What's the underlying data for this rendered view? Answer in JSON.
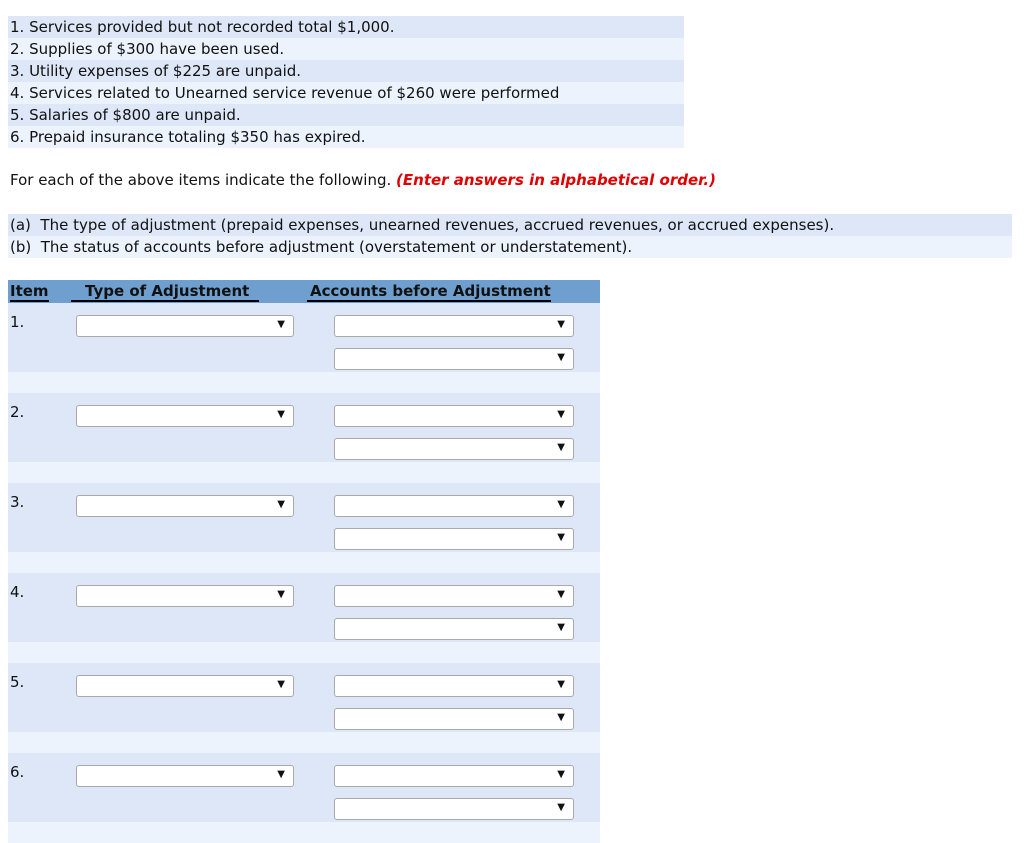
{
  "items": [
    "1. Services provided but not recorded total $1,000.",
    "2. Supplies of $300 have been used.",
    "3. Utility expenses of $225 are unpaid.",
    "4. Services related to Unearned service revenue of $260 were performed",
    "5. Salaries of $800 are unpaid.",
    "6. Prepaid insurance totaling $350 has expired."
  ],
  "instruction": {
    "text": "For each of the above items indicate the following.",
    "emphasis": "(Enter answers in alphabetical order.)"
  },
  "parts": [
    "(a)  The type of adjustment (prepaid expenses, unearned revenues, accrued revenues, or accrued expenses).",
    "(b)  The status of accounts before adjustment (overstatement or understatement)."
  ],
  "table": {
    "headers": {
      "item": "Item",
      "type": "Type of Adjustment",
      "accounts": "Accounts before Adjustment"
    },
    "rows": [
      {
        "label": "1.",
        "type": "",
        "accounts": [
          "",
          ""
        ]
      },
      {
        "label": "2.",
        "type": "",
        "accounts": [
          "",
          ""
        ]
      },
      {
        "label": "3.",
        "type": "",
        "accounts": [
          "",
          ""
        ]
      },
      {
        "label": "4.",
        "type": "",
        "accounts": [
          "",
          ""
        ]
      },
      {
        "label": "5.",
        "type": "",
        "accounts": [
          "",
          ""
        ]
      },
      {
        "label": "6.",
        "type": "",
        "accounts": [
          "",
          ""
        ]
      }
    ],
    "dropdown_icon": "triangle-down-icon"
  }
}
